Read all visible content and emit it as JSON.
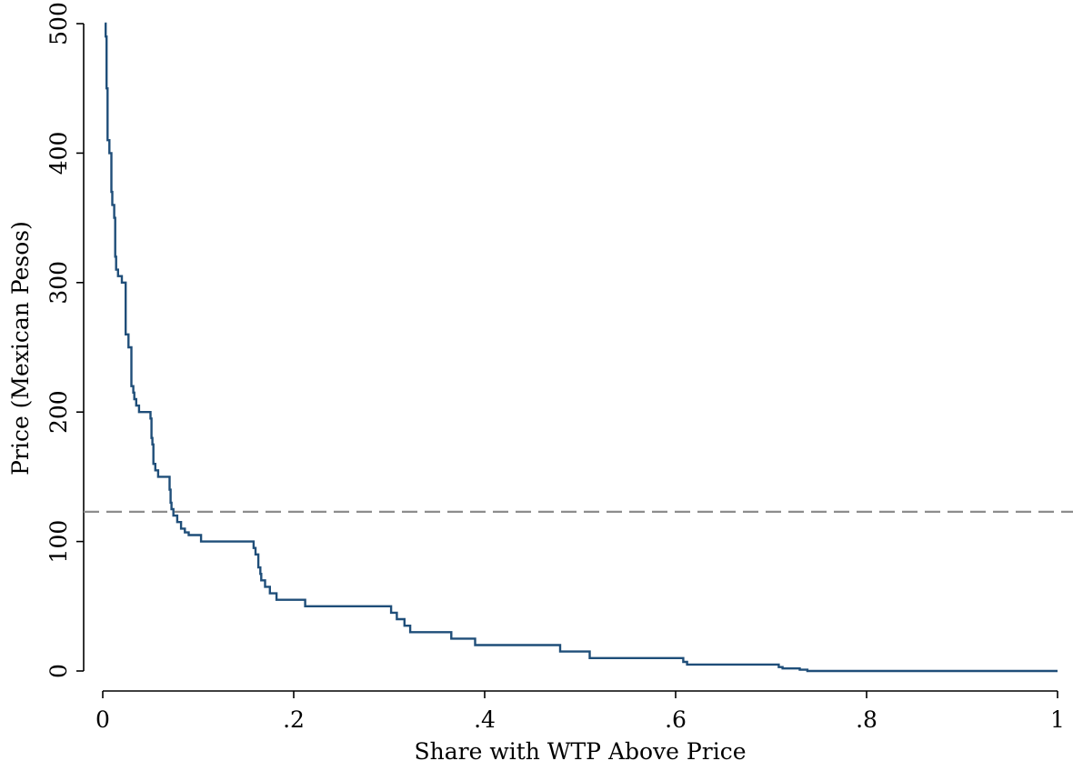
{
  "chart_data": {
    "type": "line",
    "title": "",
    "xlabel": "Share with WTP Above Price",
    "ylabel": "Price (Mexican Pesos)",
    "xlim": [
      0,
      1
    ],
    "ylim": [
      0,
      500
    ],
    "x_ticks": [
      0,
      0.2,
      0.4,
      0.6,
      0.8,
      1
    ],
    "x_tick_labels": [
      "0",
      ".2",
      ".4",
      ".6",
      ".8",
      "1"
    ],
    "y_ticks": [
      0,
      100,
      200,
      300,
      400,
      500
    ],
    "y_tick_labels": [
      "0",
      "100",
      "200",
      "300",
      "400",
      "500"
    ],
    "grid": false,
    "legend": "none",
    "reference_line": {
      "orientation": "horizontal",
      "y": 123,
      "style": "dashed",
      "color": "#8c8c8c"
    },
    "series": [
      {
        "color": "#1f4e79",
        "step": true,
        "points": [
          [
            0.002,
            500
          ],
          [
            0.003,
            490
          ],
          [
            0.004,
            460
          ],
          [
            0.004,
            450
          ],
          [
            0.005,
            410
          ],
          [
            0.007,
            400
          ],
          [
            0.009,
            370
          ],
          [
            0.01,
            360
          ],
          [
            0.012,
            350
          ],
          [
            0.013,
            320
          ],
          [
            0.014,
            310
          ],
          [
            0.016,
            305
          ],
          [
            0.02,
            300
          ],
          [
            0.024,
            260
          ],
          [
            0.027,
            250
          ],
          [
            0.03,
            220
          ],
          [
            0.032,
            215
          ],
          [
            0.033,
            210
          ],
          [
            0.035,
            205
          ],
          [
            0.038,
            200
          ],
          [
            0.05,
            195
          ],
          [
            0.051,
            180
          ],
          [
            0.052,
            175
          ],
          [
            0.053,
            160
          ],
          [
            0.055,
            155
          ],
          [
            0.058,
            150
          ],
          [
            0.07,
            140
          ],
          [
            0.071,
            130
          ],
          [
            0.072,
            125
          ],
          [
            0.074,
            120
          ],
          [
            0.078,
            115
          ],
          [
            0.082,
            110
          ],
          [
            0.086,
            107
          ],
          [
            0.09,
            105
          ],
          [
            0.103,
            100
          ],
          [
            0.158,
            95
          ],
          [
            0.16,
            90
          ],
          [
            0.163,
            80
          ],
          [
            0.165,
            75
          ],
          [
            0.166,
            70
          ],
          [
            0.17,
            65
          ],
          [
            0.175,
            60
          ],
          [
            0.182,
            55
          ],
          [
            0.212,
            50
          ],
          [
            0.302,
            45
          ],
          [
            0.308,
            40
          ],
          [
            0.316,
            35
          ],
          [
            0.322,
            30
          ],
          [
            0.365,
            25
          ],
          [
            0.39,
            20
          ],
          [
            0.479,
            15
          ],
          [
            0.51,
            10
          ],
          [
            0.608,
            7
          ],
          [
            0.612,
            5
          ],
          [
            0.708,
            3
          ],
          [
            0.712,
            2
          ],
          [
            0.73,
            1
          ],
          [
            0.738,
            0
          ],
          [
            1.0,
            0
          ]
        ]
      }
    ]
  }
}
